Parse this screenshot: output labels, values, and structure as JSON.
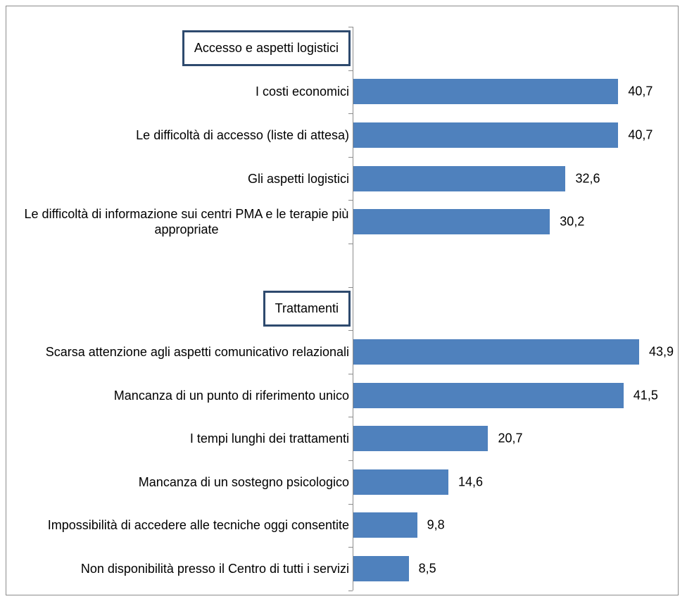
{
  "chart_data": {
    "type": "bar",
    "orientation": "horizontal",
    "color": "#4f81bd",
    "groups": [
      {
        "title": "Accesso e aspetti logistici",
        "categories": [
          "I costi economici",
          "Le difficoltà di accesso (liste di attesa)",
          "Gli aspetti logistici",
          "Le difficoltà di informazione sui centri PMA e le terapie più appropriate"
        ],
        "values": [
          40.7,
          40.7,
          32.6,
          30.2
        ],
        "value_labels": [
          "40,7",
          "40,7",
          "32,6",
          "30,2"
        ]
      },
      {
        "title": "Trattamenti",
        "categories": [
          "Scarsa attenzione agli aspetti comunicativo relazionali",
          "Mancanza di un punto di riferimento unico",
          "I tempi lunghi dei trattamenti",
          "Mancanza di un sostegno psicologico",
          "Impossibilità di accedere alle tecniche oggi consentite",
          "Non disponibilità presso il Centro di tutti i servizi"
        ],
        "values": [
          43.9,
          41.5,
          20.7,
          14.6,
          9.8,
          8.5
        ],
        "value_labels": [
          "43,9",
          "41,5",
          "20,7",
          "14,6",
          "9,8",
          "8,5"
        ]
      }
    ]
  }
}
